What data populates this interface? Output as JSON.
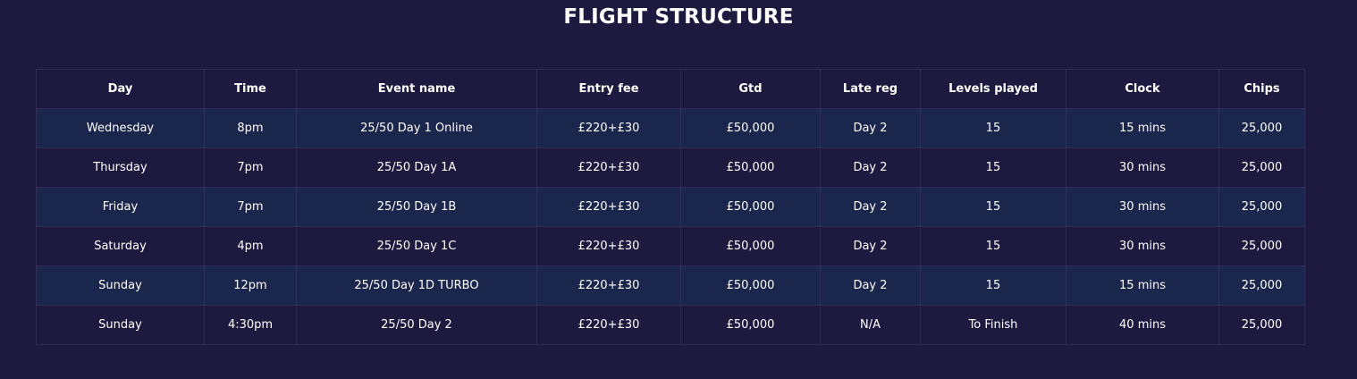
{
  "title": "FLIGHT STRUCTURE",
  "columns": [
    "Day",
    "Time",
    "Event name",
    "Entry fee",
    "Gtd",
    "Late reg",
    "Levels played",
    "Clock",
    "Chips"
  ],
  "rows": [
    [
      "Wednesday",
      "8pm",
      "25/50 Day 1 Online",
      "£220+£30",
      "£50,000",
      "Day 2",
      "15",
      "15 mins",
      "25,000"
    ],
    [
      "Thursday",
      "7pm",
      "25/50 Day 1A",
      "£220+£30",
      "£50,000",
      "Day 2",
      "15",
      "30 mins",
      "25,000"
    ],
    [
      "Friday",
      "7pm",
      "25/50 Day 1B",
      "£220+£30",
      "£50,000",
      "Day 2",
      "15",
      "30 mins",
      "25,000"
    ],
    [
      "Saturday",
      "4pm",
      "25/50 Day 1C",
      "£220+£30",
      "£50,000",
      "Day 2",
      "15",
      "30 mins",
      "25,000"
    ],
    [
      "Sunday",
      "12pm",
      "25/50 Day 1D TURBO",
      "£220+£30",
      "£50,000",
      "Day 2",
      "15",
      "15 mins",
      "25,000"
    ],
    [
      "Sunday",
      "4:30pm",
      "25/50 Day 2",
      "£220+£30",
      "£50,000",
      "N/A",
      "To Finish",
      "40 mins",
      "25,000"
    ]
  ],
  "colors": {
    "background": "#1e1a3f",
    "stripe": "#1a264b",
    "border": "#2f2c58",
    "text": "#ffffff"
  }
}
